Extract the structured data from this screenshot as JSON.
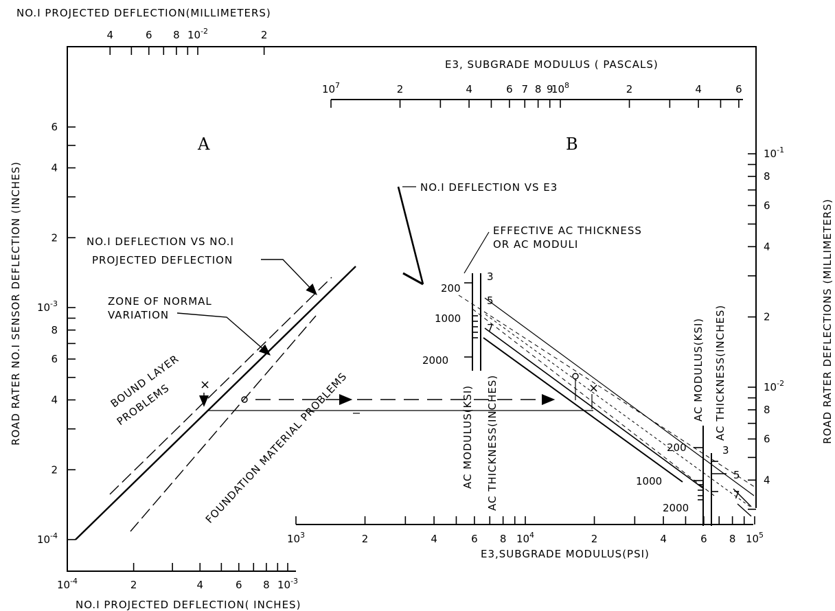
{
  "chart_data": {
    "type": "line",
    "panels": {
      "A": {
        "x_axis": {
          "label": "NO.I PROJECTED DEFLECTION( INCHES)",
          "ticks": [
            "10-4",
            "2",
            "4",
            "6",
            "8",
            "10-3"
          ]
        },
        "x_axis_top": {
          "label": "NO.I PROJECTED DEFLECTION(MILLIMETERS)",
          "ticks": [
            "4",
            "6",
            "8",
            "10-2",
            "2"
          ]
        },
        "y_axis": {
          "label": "ROAD RATER NO.I SENSOR DEFLECTION (INCHES)",
          "ticks": [
            "10-4",
            "2",
            "4",
            "6",
            "8",
            "10-3",
            "2",
            "4",
            "6"
          ]
        },
        "series": [
          {
            "name": "NO.I DEFLECTION VS NO.I PROJECTED DEFLECTION",
            "x": [
              0.0001,
              0.0015
            ],
            "y": [
              0.0001,
              0.0015
            ]
          }
        ],
        "annotations": [
          "A",
          "NO.I DEFLECTION VS NO.I",
          "PROJECTED DEFLECTION",
          "ZONE OF NORMAL",
          "VARIATION",
          "BOUND LAYER",
          "PROBLEMS",
          "FOUNDATION MATERIAL PROBLEMS"
        ]
      },
      "B": {
        "x_axis": {
          "label": "E3,SUBGRADE MODULUS(PSI)",
          "ticks": [
            "10^3",
            "2",
            "4",
            "6",
            "8",
            "10^4",
            "2",
            "4",
            "6",
            "8",
            "10^5"
          ]
        },
        "x_axis_top": {
          "label": "E3, SUBGRADE MODULUS ( PASCALS)",
          "ticks": [
            "10^7",
            "2",
            "4",
            "6",
            "7",
            "8",
            "9",
            "10^8",
            "2",
            "4",
            "6"
          ]
        },
        "y_axis_right": {
          "label": "ROAD RATER DEFLECTIONS (MILLIMETERS)",
          "ticks": [
            "10-1",
            "8",
            "6",
            "4",
            "2",
            "10-2",
            "8",
            "6",
            "4"
          ]
        },
        "annotations": [
          "B",
          "NO.I DEFLECTION VS E3",
          "EFFECTIVE AC THICKNESS",
          "OR AC MODULI"
        ],
        "ac_modulus_scale": {
          "label": "AC MODULUS(KSI)",
          "ticks": [
            "200",
            "1000",
            "2000"
          ]
        },
        "ac_thickness_scale": {
          "label": "AC THICKNESS(INCHES)",
          "ticks": [
            "3",
            "5",
            "7"
          ]
        }
      }
    }
  }
}
